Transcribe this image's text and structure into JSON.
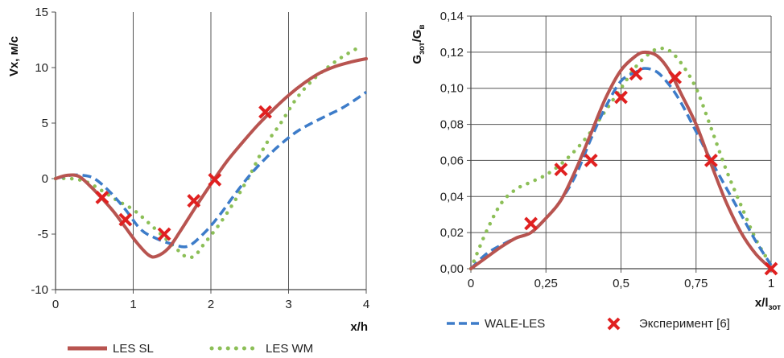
{
  "chart_data": [
    {
      "type": "line",
      "xlabel": "x/h",
      "ylabel": "Vx, м/с",
      "xlim": [
        0,
        4
      ],
      "ylim": [
        -10,
        15
      ],
      "x_ticks": [
        "0",
        "1",
        "2",
        "3",
        "4"
      ],
      "y_ticks": [
        "-10",
        "-5",
        "0",
        "5",
        "10",
        "15"
      ],
      "grid": "vertical",
      "series": [
        {
          "name": "LES SL",
          "style": "solid",
          "color": "#b85450",
          "x": [
            0,
            0.15,
            0.3,
            0.45,
            0.6,
            0.75,
            0.9,
            1.05,
            1.2,
            1.3,
            1.45,
            1.6,
            1.8,
            2.0,
            2.2,
            2.4,
            2.6,
            2.8,
            3.0,
            3.2,
            3.4,
            3.6,
            3.8,
            4.0
          ],
          "y": [
            0,
            0.3,
            0.2,
            -0.7,
            -1.8,
            -3.0,
            -4.4,
            -5.8,
            -6.9,
            -7.0,
            -6.3,
            -4.8,
            -2.6,
            -0.5,
            1.5,
            3.2,
            4.8,
            6.2,
            7.5,
            8.6,
            9.5,
            10.1,
            10.5,
            10.8
          ]
        },
        {
          "name": "LES WM",
          "style": "dotted",
          "color": "#8cbf57",
          "x": [
            0,
            0.2,
            0.4,
            0.6,
            0.8,
            1.0,
            1.2,
            1.4,
            1.6,
            1.7,
            1.8,
            1.9,
            2.1,
            2.3,
            2.5,
            2.7,
            2.9,
            3.1,
            3.3,
            3.5,
            3.7,
            3.9
          ],
          "y": [
            0,
            0,
            -0.3,
            -1.1,
            -2.0,
            -2.8,
            -4.0,
            -5.3,
            -6.6,
            -7.1,
            -6.9,
            -6.0,
            -4.2,
            -2.1,
            0.3,
            3.0,
            5.0,
            7.2,
            8.8,
            10.0,
            11.0,
            11.8
          ]
        },
        {
          "name": "WALE-LES",
          "style": "dashed",
          "color": "#3d7cc9",
          "x": [
            0,
            0.2,
            0.35,
            0.5,
            0.7,
            0.9,
            1.1,
            1.3,
            1.5,
            1.7,
            1.9,
            2.1,
            2.3,
            2.5,
            2.7,
            2.9,
            3.1,
            3.3,
            3.5,
            3.7,
            3.9,
            4.0
          ],
          "y": [
            0,
            0.3,
            0.3,
            0,
            -1.2,
            -2.8,
            -4.6,
            -5.4,
            -5.9,
            -6.1,
            -5.0,
            -3.4,
            -1.5,
            0.3,
            1.8,
            3.1,
            4.2,
            5.0,
            5.7,
            6.4,
            7.3,
            7.8
          ]
        },
        {
          "name": "Эксперимент [6]",
          "style": "marker",
          "color": "#e02020",
          "x": [
            0.6,
            0.9,
            1.4,
            1.78,
            2.05,
            2.7
          ],
          "y": [
            -1.7,
            -3.7,
            -5.0,
            -2.0,
            -0.1,
            6.0
          ]
        }
      ]
    },
    {
      "type": "line",
      "xlabel": "x/lзот",
      "ylabel": "Gзот/Gв",
      "xlim": [
        0,
        1
      ],
      "ylim": [
        0,
        0.14
      ],
      "x_ticks": [
        "0",
        "0,25",
        "0,5",
        "0,75",
        "1"
      ],
      "y_ticks": [
        "0,00",
        "0,02",
        "0,04",
        "0,06",
        "0,08",
        "0,10",
        "0,12",
        "0,14"
      ],
      "grid": "both",
      "series": [
        {
          "name": "LES SL",
          "style": "solid",
          "color": "#b85450",
          "x": [
            0,
            0.05,
            0.1,
            0.15,
            0.2,
            0.25,
            0.3,
            0.35,
            0.4,
            0.45,
            0.5,
            0.55,
            0.58,
            0.62,
            0.66,
            0.7,
            0.75,
            0.8,
            0.85,
            0.9,
            0.95,
            1.0
          ],
          "y": [
            0,
            0.006,
            0.012,
            0.017,
            0.02,
            0.028,
            0.038,
            0.055,
            0.075,
            0.095,
            0.11,
            0.118,
            0.12,
            0.118,
            0.11,
            0.097,
            0.08,
            0.058,
            0.037,
            0.02,
            0.008,
            0
          ]
        },
        {
          "name": "LES WM",
          "style": "dotted",
          "color": "#8cbf57",
          "x": [
            0,
            0.05,
            0.1,
            0.15,
            0.2,
            0.25,
            0.3,
            0.35,
            0.4,
            0.45,
            0.5,
            0.55,
            0.6,
            0.63,
            0.66,
            0.7,
            0.75,
            0.8,
            0.85,
            0.9,
            0.95,
            1.0
          ],
          "y": [
            0,
            0.02,
            0.036,
            0.044,
            0.048,
            0.052,
            0.058,
            0.066,
            0.076,
            0.088,
            0.1,
            0.112,
            0.12,
            0.122,
            0.121,
            0.114,
            0.1,
            0.078,
            0.055,
            0.035,
            0.016,
            0.002
          ]
        },
        {
          "name": "WALE-LES",
          "style": "dashed",
          "color": "#3d7cc9",
          "x": [
            0,
            0.05,
            0.1,
            0.15,
            0.2,
            0.25,
            0.3,
            0.35,
            0.4,
            0.45,
            0.5,
            0.55,
            0.58,
            0.62,
            0.66,
            0.7,
            0.75,
            0.8,
            0.85,
            0.9,
            0.95,
            1.0
          ],
          "y": [
            0,
            0.008,
            0.013,
            0.017,
            0.02,
            0.028,
            0.038,
            0.052,
            0.072,
            0.09,
            0.104,
            0.109,
            0.111,
            0.109,
            0.102,
            0.092,
            0.076,
            0.06,
            0.045,
            0.03,
            0.015,
            0.002
          ]
        },
        {
          "name": "Эксперимент [6]",
          "style": "marker",
          "color": "#e02020",
          "x": [
            0.2,
            0.3,
            0.4,
            0.5,
            0.55,
            0.68,
            0.8,
            1.0
          ],
          "y": [
            0.025,
            0.055,
            0.06,
            0.095,
            0.108,
            0.106,
            0.06,
            0.0
          ]
        }
      ]
    }
  ],
  "legend": [
    {
      "label": "LES SL",
      "style": "solid",
      "color": "#b85450"
    },
    {
      "label": "LES WM",
      "style": "dotted",
      "color": "#8cbf57"
    },
    {
      "label": "WALE-LES",
      "style": "dashed",
      "color": "#3d7cc9"
    },
    {
      "label": "Эксперимент [6]",
      "style": "marker",
      "color": "#e02020"
    }
  ]
}
